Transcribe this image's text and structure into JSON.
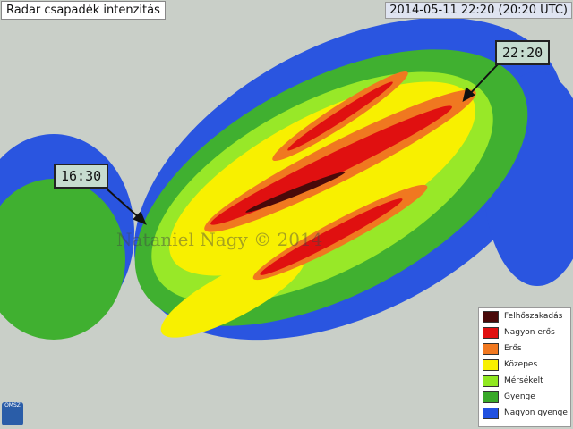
{
  "title": "Radar csapadék intenzitás",
  "timestamp": "2014-05-11 22:20 (20:20 UTC)",
  "annotations": [
    {
      "label": "16:30"
    },
    {
      "label": "22:20"
    }
  ],
  "watermark": "Nataniel Nagy © 2014",
  "logo": "OMSZ",
  "colors": {
    "map_bg": "#c9cfc8",
    "border": "#555555"
  },
  "legend": [
    {
      "label": "Felhőszakadás",
      "color": "#4a0a0a"
    },
    {
      "label": "Nagyon erős",
      "color": "#e01010"
    },
    {
      "label": "Erős",
      "color": "#f07820"
    },
    {
      "label": "Közepes",
      "color": "#f8f000"
    },
    {
      "label": "Mérsékelt",
      "color": "#90e820"
    },
    {
      "label": "Gyenge",
      "color": "#38a828"
    },
    {
      "label": "Nagyon gyenge",
      "color": "#2050e0"
    }
  ]
}
